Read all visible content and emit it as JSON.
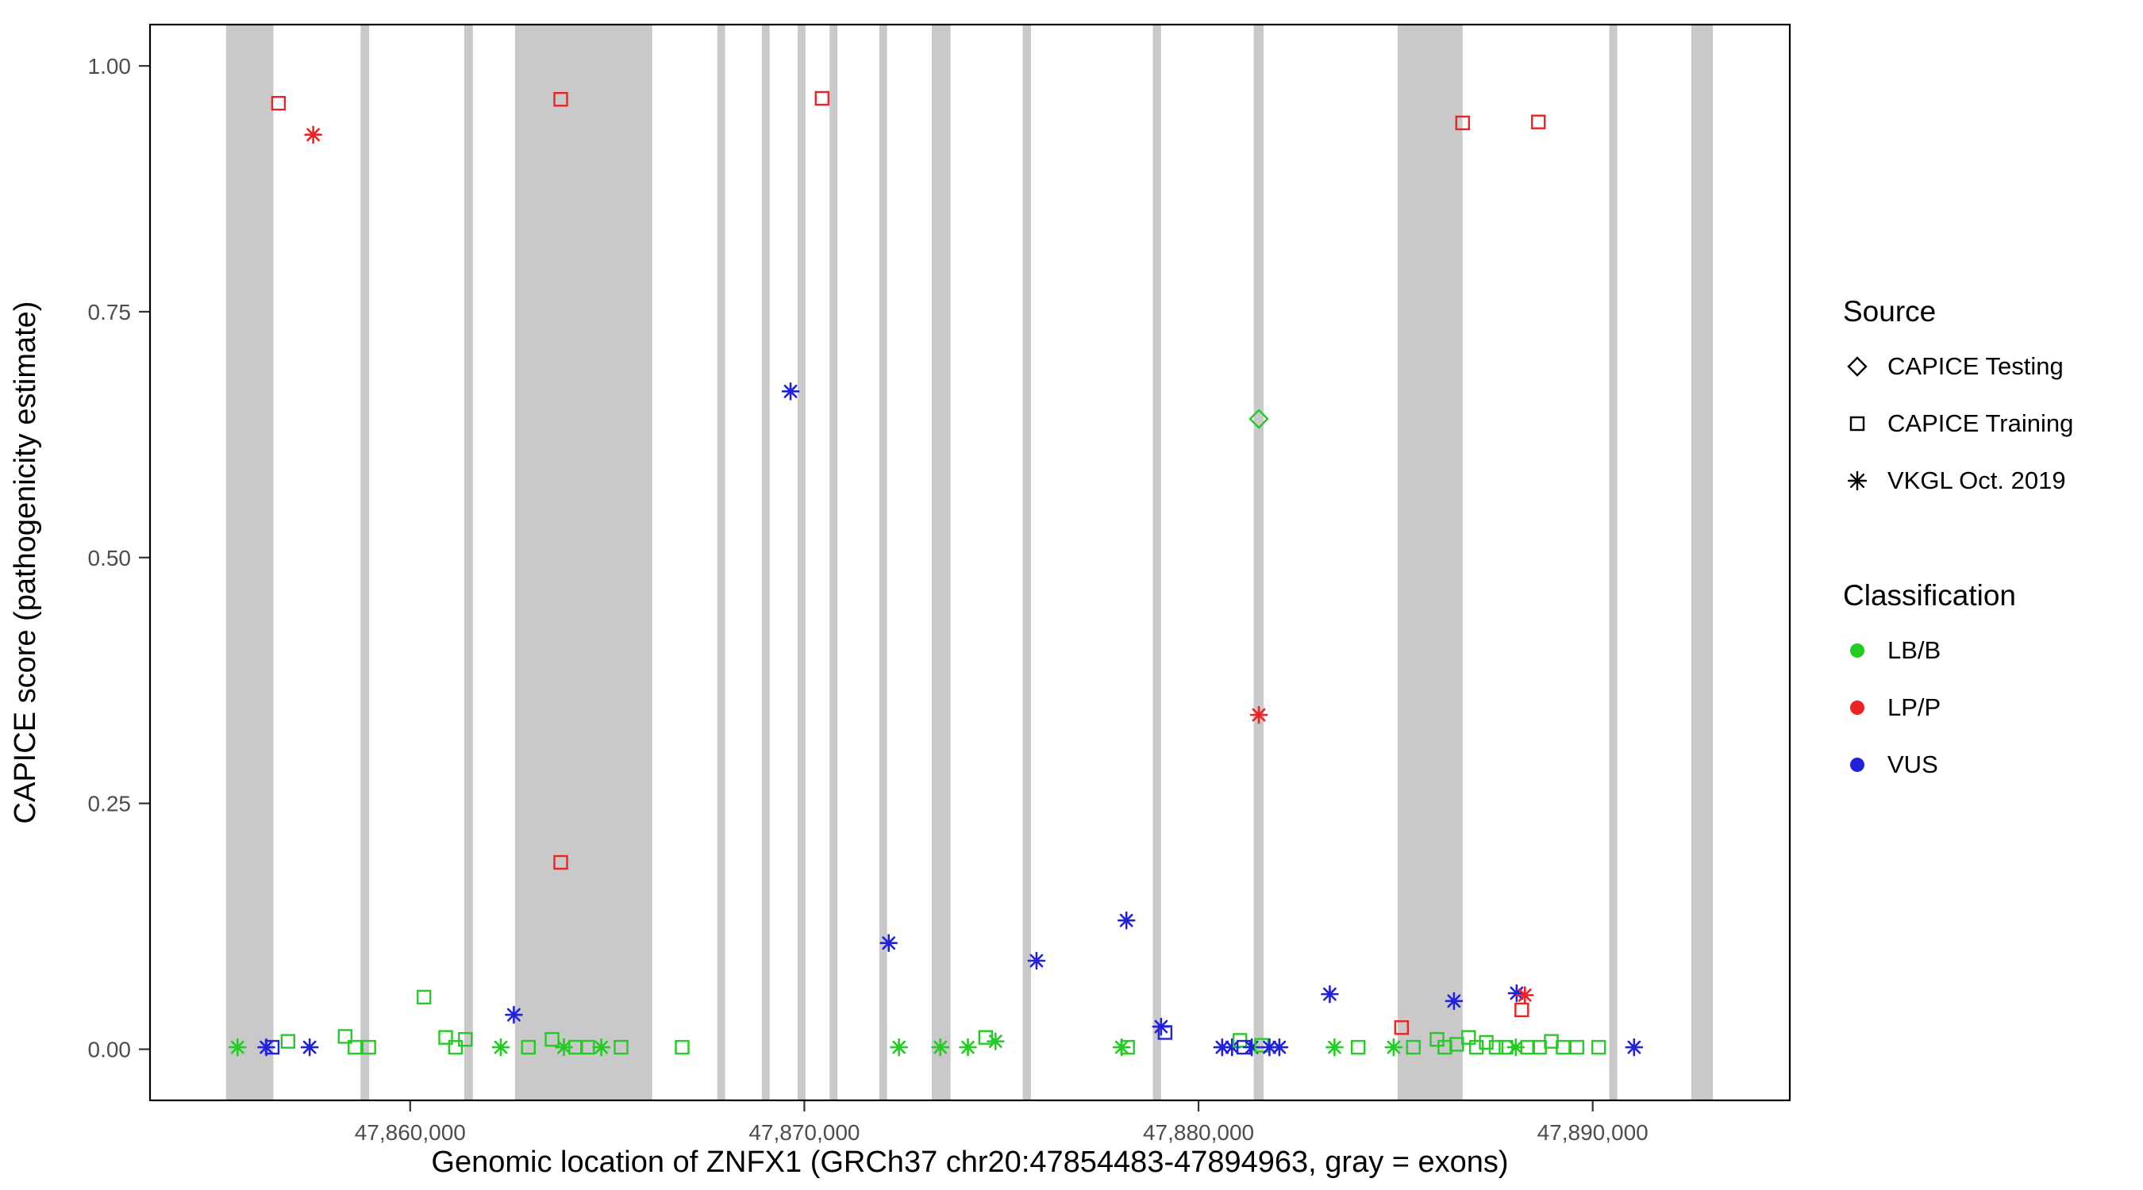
{
  "figure": {
    "background": "#ffffff",
    "panel_border_color": "#000000",
    "tick_color": "#333333"
  },
  "chart_data": {
    "type": "scatter",
    "title": "",
    "xlabel": "Genomic location of ZNFX1 (GRCh37 chr20:47854483-47894963, gray = exons)",
    "ylabel": "CAPICE score (pathogenicity estimate)",
    "x_domain": [
      47853400,
      47895000
    ],
    "y_domain": [
      -0.052,
      1.042
    ],
    "grid": "off",
    "legend_position": "right",
    "x_ticks": [
      {
        "value": 47860000,
        "label": "47,860,000"
      },
      {
        "value": 47870000,
        "label": "47,870,000"
      },
      {
        "value": 47880000,
        "label": "47,880,000"
      },
      {
        "value": 47890000,
        "label": "47,890,000"
      }
    ],
    "y_ticks": [
      {
        "value": 0.0,
        "label": "0.00"
      },
      {
        "value": 0.25,
        "label": "0.25"
      },
      {
        "value": 0.5,
        "label": "0.50"
      },
      {
        "value": 0.75,
        "label": "0.75"
      },
      {
        "value": 1.0,
        "label": "1.00"
      }
    ],
    "exon_color": "#c9c9c9",
    "exons": [
      [
        47855330,
        47856530
      ],
      [
        47858740,
        47858960
      ],
      [
        47861370,
        47861590
      ],
      [
        47862660,
        47866140
      ],
      [
        47867790,
        47867990
      ],
      [
        47868920,
        47869120
      ],
      [
        47869830,
        47870030
      ],
      [
        47870640,
        47870840
      ],
      [
        47871900,
        47872100
      ],
      [
        47873230,
        47873710
      ],
      [
        47875540,
        47875750
      ],
      [
        47878840,
        47879050
      ],
      [
        47881400,
        47881650
      ],
      [
        47885050,
        47886700
      ],
      [
        47890420,
        47890620
      ],
      [
        47892500,
        47893050
      ]
    ],
    "series_colors": {
      "LB/B": "#22CC22",
      "LP/P": "#EE2222",
      "VUS": "#2222DD"
    },
    "source_markers": {
      "CAPICE Testing": "diamond",
      "CAPICE Training": "square",
      "VKGL Oct. 2019": "asterisk"
    },
    "points": [
      {
        "pos": 47856660,
        "score": 0.962,
        "source": "CAPICE Training",
        "class": "LP/P"
      },
      {
        "pos": 47857540,
        "score": 0.93,
        "source": "VKGL Oct. 2019",
        "class": "LP/P"
      },
      {
        "pos": 47863820,
        "score": 0.966,
        "source": "CAPICE Training",
        "class": "LP/P"
      },
      {
        "pos": 47870450,
        "score": 0.967,
        "source": "CAPICE Training",
        "class": "LP/P"
      },
      {
        "pos": 47886700,
        "score": 0.942,
        "source": "CAPICE Training",
        "class": "LP/P"
      },
      {
        "pos": 47888620,
        "score": 0.943,
        "source": "CAPICE Training",
        "class": "LP/P"
      },
      {
        "pos": 47869650,
        "score": 0.669,
        "source": "VKGL Oct. 2019",
        "class": "VUS"
      },
      {
        "pos": 47881530,
        "score": 0.641,
        "source": "CAPICE Testing",
        "class": "LB/B"
      },
      {
        "pos": 47881530,
        "score": 0.34,
        "source": "VKGL Oct. 2019",
        "class": "LP/P"
      },
      {
        "pos": 47863820,
        "score": 0.19,
        "source": "CAPICE Training",
        "class": "LP/P"
      },
      {
        "pos": 47872140,
        "score": 0.108,
        "source": "VKGL Oct. 2019",
        "class": "VUS"
      },
      {
        "pos": 47875890,
        "score": 0.09,
        "source": "VKGL Oct. 2019",
        "class": "VUS"
      },
      {
        "pos": 47878170,
        "score": 0.131,
        "source": "VKGL Oct. 2019",
        "class": "VUS"
      },
      {
        "pos": 47879050,
        "score": 0.023,
        "source": "VKGL Oct. 2019",
        "class": "VUS"
      },
      {
        "pos": 47879150,
        "score": 0.017,
        "source": "CAPICE Training",
        "class": "VUS"
      },
      {
        "pos": 47883330,
        "score": 0.056,
        "source": "VKGL Oct. 2019",
        "class": "VUS"
      },
      {
        "pos": 47886480,
        "score": 0.049,
        "source": "VKGL Oct. 2019",
        "class": "VUS"
      },
      {
        "pos": 47888070,
        "score": 0.057,
        "source": "VKGL Oct. 2019",
        "class": "VUS"
      },
      {
        "pos": 47888280,
        "score": 0.055,
        "source": "VKGL Oct. 2019",
        "class": "LP/P"
      },
      {
        "pos": 47888200,
        "score": 0.04,
        "source": "CAPICE Training",
        "class": "LP/P"
      },
      {
        "pos": 47885150,
        "score": 0.022,
        "source": "CAPICE Training",
        "class": "LP/P"
      },
      {
        "pos": 47862630,
        "score": 0.035,
        "source": "VKGL Oct. 2019",
        "class": "VUS"
      },
      {
        "pos": 47860350,
        "score": 0.053,
        "source": "CAPICE Training",
        "class": "LB/B"
      },
      {
        "pos": 47855620,
        "score": 0.002,
        "source": "VKGL Oct. 2019",
        "class": "LB/B"
      },
      {
        "pos": 47856350,
        "score": 0.002,
        "source": "VKGL Oct. 2019",
        "class": "VUS"
      },
      {
        "pos": 47856500,
        "score": 0.002,
        "source": "CAPICE Training",
        "class": "VUS"
      },
      {
        "pos": 47856900,
        "score": 0.008,
        "source": "CAPICE Training",
        "class": "LB/B"
      },
      {
        "pos": 47857450,
        "score": 0.002,
        "source": "VKGL Oct. 2019",
        "class": "VUS"
      },
      {
        "pos": 47858350,
        "score": 0.013,
        "source": "CAPICE Training",
        "class": "LB/B"
      },
      {
        "pos": 47858600,
        "score": 0.002,
        "source": "CAPICE Training",
        "class": "LB/B"
      },
      {
        "pos": 47858950,
        "score": 0.002,
        "source": "CAPICE Training",
        "class": "LB/B"
      },
      {
        "pos": 47860900,
        "score": 0.012,
        "source": "CAPICE Training",
        "class": "LB/B"
      },
      {
        "pos": 47861150,
        "score": 0.002,
        "source": "CAPICE Training",
        "class": "LB/B"
      },
      {
        "pos": 47861400,
        "score": 0.01,
        "source": "CAPICE Training",
        "class": "LB/B"
      },
      {
        "pos": 47862300,
        "score": 0.002,
        "source": "VKGL Oct. 2019",
        "class": "LB/B"
      },
      {
        "pos": 47863000,
        "score": 0.002,
        "source": "CAPICE Training",
        "class": "LB/B"
      },
      {
        "pos": 47863600,
        "score": 0.01,
        "source": "CAPICE Training",
        "class": "LB/B"
      },
      {
        "pos": 47863900,
        "score": 0.002,
        "source": "VKGL Oct. 2019",
        "class": "LB/B"
      },
      {
        "pos": 47864200,
        "score": 0.002,
        "source": "CAPICE Training",
        "class": "LB/B"
      },
      {
        "pos": 47864500,
        "score": 0.002,
        "source": "CAPICE Training",
        "class": "LB/B"
      },
      {
        "pos": 47864850,
        "score": 0.002,
        "source": "VKGL Oct. 2019",
        "class": "LB/B"
      },
      {
        "pos": 47865350,
        "score": 0.002,
        "source": "CAPICE Training",
        "class": "LB/B"
      },
      {
        "pos": 47866900,
        "score": 0.002,
        "source": "CAPICE Training",
        "class": "LB/B"
      },
      {
        "pos": 47872400,
        "score": 0.002,
        "source": "VKGL Oct. 2019",
        "class": "LB/B"
      },
      {
        "pos": 47873450,
        "score": 0.002,
        "source": "VKGL Oct. 2019",
        "class": "LB/B"
      },
      {
        "pos": 47874150,
        "score": 0.002,
        "source": "VKGL Oct. 2019",
        "class": "LB/B"
      },
      {
        "pos": 47874600,
        "score": 0.012,
        "source": "CAPICE Training",
        "class": "LB/B"
      },
      {
        "pos": 47874850,
        "score": 0.008,
        "source": "VKGL Oct. 2019",
        "class": "LB/B"
      },
      {
        "pos": 47878050,
        "score": 0.002,
        "source": "VKGL Oct. 2019",
        "class": "LB/B"
      },
      {
        "pos": 47878200,
        "score": 0.002,
        "source": "CAPICE Training",
        "class": "LB/B"
      },
      {
        "pos": 47880600,
        "score": 0.002,
        "source": "VKGL Oct. 2019",
        "class": "VUS"
      },
      {
        "pos": 47880850,
        "score": 0.002,
        "source": "VKGL Oct. 2019",
        "class": "VUS"
      },
      {
        "pos": 47881050,
        "score": 0.009,
        "source": "CAPICE Training",
        "class": "LB/B"
      },
      {
        "pos": 47881150,
        "score": 0.002,
        "source": "CAPICE Training",
        "class": "VUS"
      },
      {
        "pos": 47881350,
        "score": 0.002,
        "source": "VKGL Oct. 2019",
        "class": "VUS"
      },
      {
        "pos": 47881600,
        "score": 0.004,
        "source": "CAPICE Training",
        "class": "LB/B"
      },
      {
        "pos": 47881800,
        "score": 0.002,
        "source": "VKGL Oct. 2019",
        "class": "VUS"
      },
      {
        "pos": 47882050,
        "score": 0.002,
        "source": "VKGL Oct. 2019",
        "class": "VUS"
      },
      {
        "pos": 47883450,
        "score": 0.002,
        "source": "VKGL Oct. 2019",
        "class": "LB/B"
      },
      {
        "pos": 47884050,
        "score": 0.002,
        "source": "CAPICE Training",
        "class": "LB/B"
      },
      {
        "pos": 47884950,
        "score": 0.002,
        "source": "VKGL Oct. 2019",
        "class": "LB/B"
      },
      {
        "pos": 47885450,
        "score": 0.002,
        "source": "CAPICE Training",
        "class": "LB/B"
      },
      {
        "pos": 47886050,
        "score": 0.01,
        "source": "CAPICE Training",
        "class": "LB/B"
      },
      {
        "pos": 47886250,
        "score": 0.002,
        "source": "CAPICE Training",
        "class": "LB/B"
      },
      {
        "pos": 47886550,
        "score": 0.005,
        "source": "CAPICE Training",
        "class": "LB/B"
      },
      {
        "pos": 47886850,
        "score": 0.012,
        "source": "CAPICE Training",
        "class": "LB/B"
      },
      {
        "pos": 47887050,
        "score": 0.002,
        "source": "CAPICE Training",
        "class": "LB/B"
      },
      {
        "pos": 47887300,
        "score": 0.007,
        "source": "CAPICE Training",
        "class": "LB/B"
      },
      {
        "pos": 47887550,
        "score": 0.002,
        "source": "CAPICE Training",
        "class": "LB/B"
      },
      {
        "pos": 47887800,
        "score": 0.002,
        "source": "CAPICE Training",
        "class": "LB/B"
      },
      {
        "pos": 47888050,
        "score": 0.002,
        "source": "VKGL Oct. 2019",
        "class": "LB/B"
      },
      {
        "pos": 47888350,
        "score": 0.002,
        "source": "CAPICE Training",
        "class": "LB/B"
      },
      {
        "pos": 47888650,
        "score": 0.002,
        "source": "CAPICE Training",
        "class": "LB/B"
      },
      {
        "pos": 47888950,
        "score": 0.008,
        "source": "CAPICE Training",
        "class": "LB/B"
      },
      {
        "pos": 47889250,
        "score": 0.002,
        "source": "CAPICE Training",
        "class": "LB/B"
      },
      {
        "pos": 47889600,
        "score": 0.002,
        "source": "CAPICE Training",
        "class": "LB/B"
      },
      {
        "pos": 47890150,
        "score": 0.002,
        "source": "CAPICE Training",
        "class": "LB/B"
      },
      {
        "pos": 47891050,
        "score": 0.002,
        "source": "VKGL Oct. 2019",
        "class": "VUS"
      }
    ]
  },
  "legend": {
    "source_title": "Source",
    "source_items": [
      {
        "label": "CAPICE Testing",
        "marker": "diamond"
      },
      {
        "label": "CAPICE Training",
        "marker": "square"
      },
      {
        "label": "VKGL Oct. 2019",
        "marker": "asterisk"
      }
    ],
    "classification_title": "Classification",
    "classification_items": [
      {
        "label": "LB/B",
        "color": "#22CC22"
      },
      {
        "label": "LP/P",
        "color": "#EE2222"
      },
      {
        "label": "VUS",
        "color": "#2222DD"
      }
    ]
  }
}
